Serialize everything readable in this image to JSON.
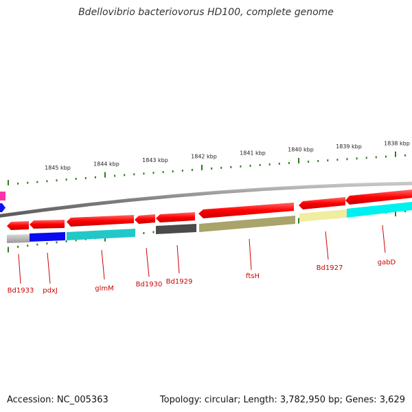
{
  "title": "Bdellovibrio bacteriovorus HD100, complete genome",
  "footer": {
    "accession": "Accession: NC_005363",
    "topology": "Topology: circular; Length: 3,782,950 bp; Genes: 3,629"
  },
  "ruler": {
    "labels": [
      "1845 kbp",
      "1844 kbp",
      "1843 kbp",
      "1842 kbp",
      "1841 kbp",
      "1840 kbp",
      "1839 kbp",
      "1838 kbp"
    ]
  },
  "genes": [
    {
      "name": "Bd1933"
    },
    {
      "name": "pdxJ"
    },
    {
      "name": "glmM"
    },
    {
      "name": "Bd1930"
    },
    {
      "name": "Bd1929"
    },
    {
      "name": "ftsH"
    },
    {
      "name": "Bd1927"
    },
    {
      "name": "gabD"
    }
  ],
  "colors": {
    "cds": "#ff1a1a",
    "backbone": "#8a8a8a",
    "ticks": "#2e7d1e",
    "label": "#cc0000"
  }
}
